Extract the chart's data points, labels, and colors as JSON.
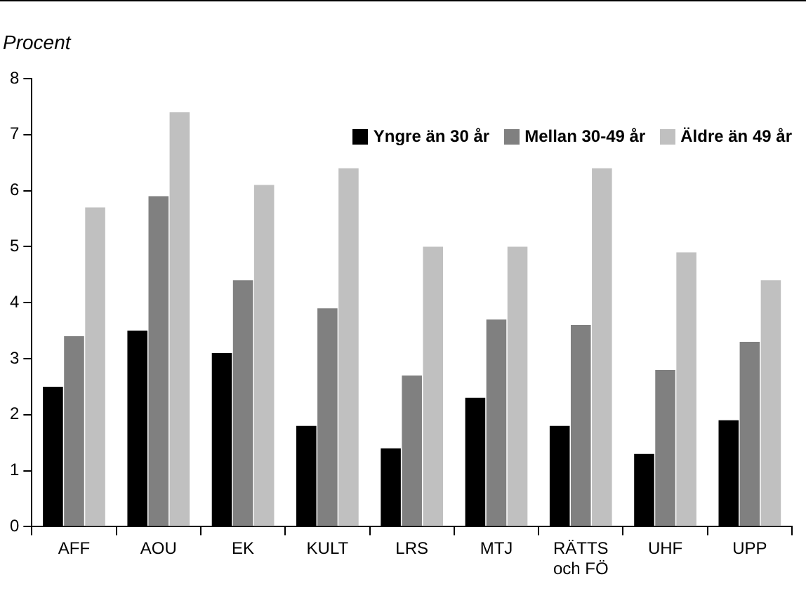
{
  "chart_data": {
    "type": "bar",
    "ylabel": "Procent",
    "categories": [
      "AFF",
      "AOU",
      "EK",
      "KULT",
      "LRS",
      "MTJ",
      "RÄTTS\noch FÖ",
      "UHF",
      "UPP"
    ],
    "series": [
      {
        "name": "Yngre än 30 år",
        "color": "#000000",
        "values": [
          2.5,
          3.5,
          3.1,
          1.8,
          1.4,
          2.3,
          1.8,
          1.3,
          1.9
        ]
      },
      {
        "name": "Mellan 30-49 år",
        "color": "#808080",
        "values": [
          3.4,
          5.9,
          4.4,
          3.9,
          2.7,
          3.7,
          3.6,
          2.8,
          3.3
        ]
      },
      {
        "name": "Äldre än 49 år",
        "color": "#c0c0c0",
        "values": [
          5.7,
          7.4,
          6.1,
          6.4,
          5.0,
          5.0,
          6.4,
          4.9,
          4.4
        ]
      }
    ],
    "ylim": [
      0,
      8
    ],
    "yticks": [
      0,
      1,
      2,
      3,
      4,
      5,
      6,
      7,
      8
    ],
    "grid": false,
    "legend": "top right"
  }
}
